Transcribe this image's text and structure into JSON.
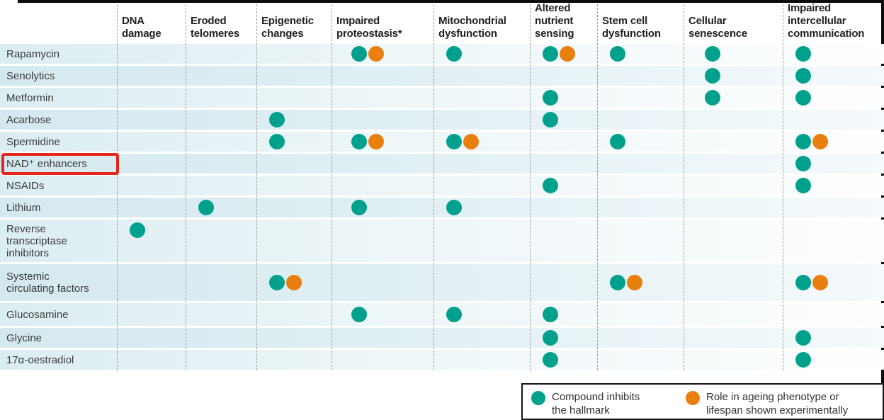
{
  "colors": {
    "inhibit_dot": "#00a18c",
    "experimental_dot": "#e87f0e",
    "highlight_box": "#e6251c",
    "row_stripe_light": "#dcedf2",
    "row_stripe_dark": "#d4e9ef"
  },
  "legend": {
    "items": [
      {
        "mark": "inhibits",
        "color": "#00a18c",
        "label": "Compound inhibits\nthe hallmark"
      },
      {
        "mark": "experimental",
        "color": "#e87f0e",
        "label": "Role in ageing phenotype or\nlifespan shown experimentally"
      }
    ]
  },
  "highlight": {
    "row": "NAD⁺ enhancers",
    "color": "#e6251c"
  },
  "chart_data": {
    "type": "table",
    "columns": [
      "DNA\ndamage",
      "Eroded\ntelomeres",
      "Epigenetic\nchanges",
      "Impaired\nproteostasis*",
      "Mitochondrial\ndysfunction",
      "Altered\nnutrient\nsensing",
      "Stem cell\ndysfunction",
      "Cellular\nsenescence",
      "Impaired\nintercellular\ncommunication"
    ],
    "mark_codes": {
      "i": "Compound inhibits the hallmark (teal dot)",
      "e": "Role in ageing phenotype or lifespan shown experimentally (orange dot)"
    },
    "rows": [
      {
        "label": "Rapamycin",
        "cells": [
          "",
          "",
          "",
          "ie",
          "i",
          "ie",
          "i",
          "i",
          "i"
        ]
      },
      {
        "label": "Senolytics",
        "cells": [
          "",
          "",
          "",
          "",
          "",
          "",
          "",
          "i",
          "i"
        ]
      },
      {
        "label": "Metformin",
        "cells": [
          "",
          "",
          "",
          "",
          "",
          "i",
          "",
          "i",
          "i"
        ]
      },
      {
        "label": "Acarbose",
        "cells": [
          "",
          "",
          "i",
          "",
          "",
          "i",
          "",
          "",
          ""
        ]
      },
      {
        "label": "Spermidine",
        "cells": [
          "",
          "",
          "i",
          "ie",
          "ie",
          "",
          "i",
          "",
          "ie"
        ]
      },
      {
        "label": "NAD⁺ enhancers",
        "cells": [
          "",
          "",
          "",
          "",
          "",
          "",
          "",
          "",
          "i"
        ]
      },
      {
        "label": "NSAIDs",
        "cells": [
          "",
          "",
          "",
          "",
          "",
          "i",
          "",
          "",
          "i"
        ]
      },
      {
        "label": "Lithium",
        "cells": [
          "",
          "i",
          "",
          "i",
          "i",
          "",
          "",
          "",
          ""
        ]
      },
      {
        "label": "Reverse\ntranscriptase\ninhibitors",
        "cells": [
          "i",
          "",
          "",
          "",
          "",
          "",
          "",
          "",
          ""
        ]
      },
      {
        "label": "Systemic\ncirculating factors",
        "cells": [
          "",
          "",
          "ie",
          "",
          "",
          "",
          "ie",
          "",
          "ie"
        ]
      },
      {
        "label": "Glucosamine",
        "cells": [
          "",
          "",
          "",
          "i",
          "i",
          "i",
          "",
          "",
          ""
        ]
      },
      {
        "label": "Glycine",
        "cells": [
          "",
          "",
          "",
          "",
          "",
          "i",
          "",
          "",
          "i"
        ]
      },
      {
        "label": "17α-oestradiol",
        "cells": [
          "",
          "",
          "",
          "",
          "",
          "i",
          "",
          "",
          "i"
        ]
      }
    ]
  }
}
